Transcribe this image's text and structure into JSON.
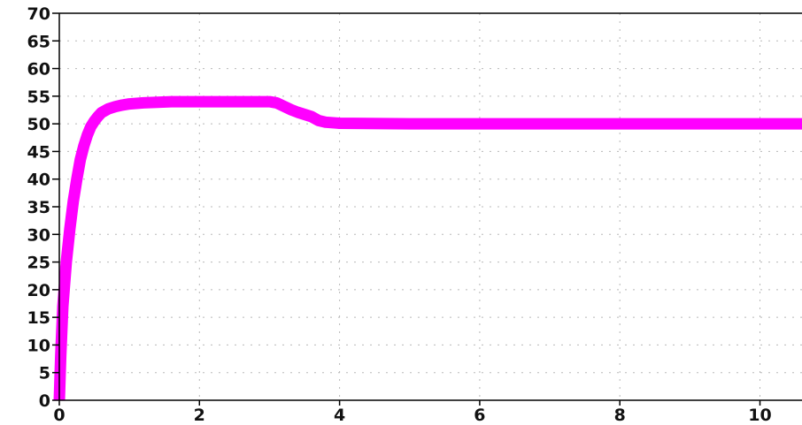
{
  "chart_data": {
    "type": "line",
    "title": "",
    "xlabel": "",
    "ylabel": "",
    "xlim": [
      0,
      10.6
    ],
    "ylim": [
      0,
      70
    ],
    "grid": true,
    "legend": "none",
    "x_ticks": [
      "0",
      "2",
      "4",
      "6",
      "8",
      "10"
    ],
    "y_ticks": [
      "0",
      "5",
      "10",
      "15",
      "20",
      "25",
      "30",
      "35",
      "40",
      "45",
      "50",
      "55",
      "60",
      "65",
      "70"
    ],
    "series": [
      {
        "color": "#ff00ff",
        "x": [
          0,
          0.02,
          0.05,
          0.1,
          0.15,
          0.2,
          0.25,
          0.3,
          0.35,
          0.4,
          0.45,
          0.5,
          0.55,
          0.6,
          0.7,
          0.8,
          0.9,
          1.0,
          1.2,
          1.4,
          1.6,
          2.0,
          2.5,
          3.0,
          3.1,
          3.2,
          3.3,
          3.4,
          3.5,
          3.6,
          3.7,
          3.8,
          4.0,
          5.0,
          6.0,
          7.0,
          8.0,
          9.0,
          10.0,
          10.6
        ],
        "y": [
          0,
          8,
          17,
          25,
          31,
          36,
          40,
          43.5,
          46,
          48,
          49.5,
          50.5,
          51.3,
          52,
          52.7,
          53.1,
          53.4,
          53.6,
          53.8,
          53.9,
          54,
          54,
          54,
          54,
          53.8,
          53.2,
          52.6,
          52.1,
          51.7,
          51.3,
          50.6,
          50.3,
          50.1,
          50,
          50,
          50,
          50,
          50,
          50,
          50
        ]
      }
    ]
  }
}
